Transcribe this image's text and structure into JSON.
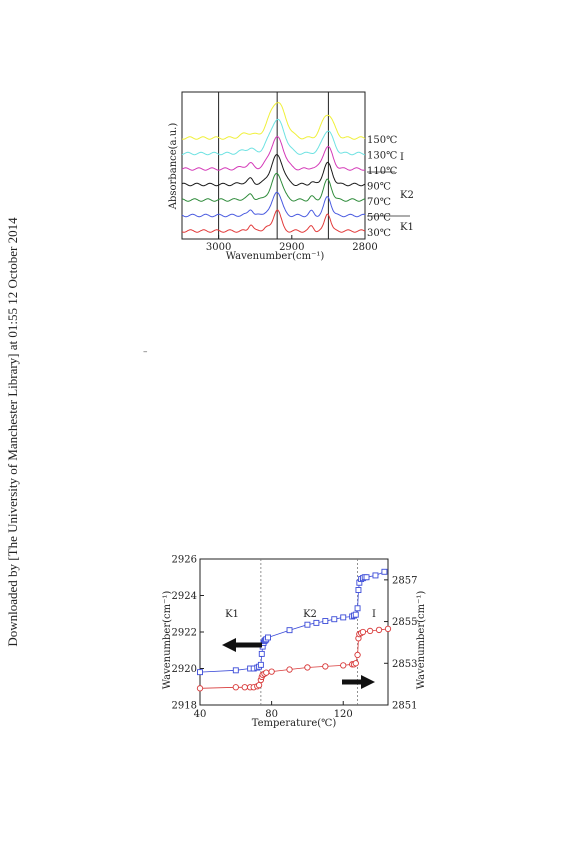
{
  "margin_note": "Downloaded by [The University of Manchester Library] at 01:55 12 October 2014",
  "stray_mark": "–",
  "chart_data": [
    {
      "type": "line",
      "title": "",
      "xlabel": "Wavenumber(cm⁻¹)",
      "ylabel": "Absorbance(a.u.)",
      "xlim": [
        3050,
        2800
      ],
      "x_reversed": true,
      "xticks": [
        "3000",
        "2900",
        "2800"
      ],
      "vertical_lines": [
        3000,
        2920,
        2850
      ],
      "peaks": [
        2920,
        2851
      ],
      "series": [
        {
          "name": "30℃",
          "color": "#e23a3a",
          "phase": "K1"
        },
        {
          "name": "50℃",
          "color": "#4a5be0",
          "phase": "K1"
        },
        {
          "name": "70℃",
          "color": "#2e8b3a",
          "phase": "K2"
        },
        {
          "name": "90℃",
          "color": "#1a1a1a",
          "phase": "K2"
        },
        {
          "name": "110℃",
          "color": "#d43ab8",
          "phase": "K2"
        },
        {
          "name": "130℃",
          "color": "#6ee2e2",
          "phase": "I"
        },
        {
          "name": "150℃",
          "color": "#f0f03a",
          "phase": "I"
        }
      ],
      "phase_labels": [
        "K1",
        "K2",
        "I"
      ]
    },
    {
      "type": "scatter",
      "title": "",
      "xlabel": "Temperature(℃)",
      "ylabel_left": "Wavenumber(cm⁻¹)",
      "ylabel_right": "Wavenumber(cm⁻¹)",
      "xlim": [
        40,
        145
      ],
      "xticks": [
        "40",
        "80",
        "120"
      ],
      "ylim_left": [
        2918,
        2926
      ],
      "yticks_left": [
        "2918",
        "2920",
        "2922",
        "2924",
        "2926"
      ],
      "ylim_right": [
        2851,
        2858
      ],
      "yticks_right": [
        "2851",
        "2853",
        "2855",
        "2857"
      ],
      "phase_boundaries": [
        74,
        128
      ],
      "phase_labels": [
        "K1",
        "K2",
        "I"
      ],
      "series": [
        {
          "axis": "left",
          "marker": "square",
          "color": "#3b4bd8",
          "points": [
            [
              40,
              2919.8
            ],
            [
              60,
              2919.9
            ],
            [
              68,
              2920.0
            ],
            [
              70,
              2920.0
            ],
            [
              72,
              2920.05
            ],
            [
              73,
              2920.1
            ],
            [
              74,
              2920.2
            ],
            [
              74.5,
              2920.8
            ],
            [
              75,
              2921.2
            ],
            [
              75.5,
              2921.4
            ],
            [
              76,
              2921.5
            ],
            [
              76.5,
              2921.55
            ],
            [
              77,
              2921.6
            ],
            [
              78,
              2921.7
            ],
            [
              90,
              2922.1
            ],
            [
              100,
              2922.4
            ],
            [
              105,
              2922.5
            ],
            [
              110,
              2922.6
            ],
            [
              115,
              2922.7
            ],
            [
              120,
              2922.8
            ],
            [
              125,
              2922.85
            ],
            [
              126,
              2922.9
            ],
            [
              127,
              2922.95
            ],
            [
              128,
              2923.3
            ],
            [
              128.5,
              2924.3
            ],
            [
              129,
              2924.7
            ],
            [
              130,
              2924.9
            ],
            [
              131,
              2924.95
            ],
            [
              132,
              2925.0
            ],
            [
              133,
              2925.0
            ],
            [
              138,
              2925.1
            ],
            [
              143,
              2925.3
            ]
          ]
        },
        {
          "axis": "right",
          "marker": "circle",
          "color": "#d83a3a",
          "points": [
            [
              40,
              2851.8
            ],
            [
              60,
              2851.85
            ],
            [
              65,
              2851.85
            ],
            [
              68,
              2851.85
            ],
            [
              70,
              2851.85
            ],
            [
              72,
              2851.9
            ],
            [
              73,
              2851.95
            ],
            [
              74,
              2852.2
            ],
            [
              74.5,
              2852.35
            ],
            [
              75,
              2852.45
            ],
            [
              76,
              2852.5
            ],
            [
              77,
              2852.55
            ],
            [
              80,
              2852.6
            ],
            [
              90,
              2852.7
            ],
            [
              100,
              2852.8
            ],
            [
              110,
              2852.85
            ],
            [
              120,
              2852.9
            ],
            [
              125,
              2852.95
            ],
            [
              126,
              2852.95
            ],
            [
              127,
              2853.0
            ],
            [
              128,
              2853.4
            ],
            [
              128.5,
              2854.2
            ],
            [
              129,
              2854.4
            ],
            [
              130,
              2854.45
            ],
            [
              131,
              2854.5
            ],
            [
              135,
              2854.55
            ],
            [
              140,
              2854.6
            ],
            [
              145,
              2854.65
            ]
          ]
        }
      ],
      "arrows": [
        "left",
        "right"
      ]
    }
  ]
}
